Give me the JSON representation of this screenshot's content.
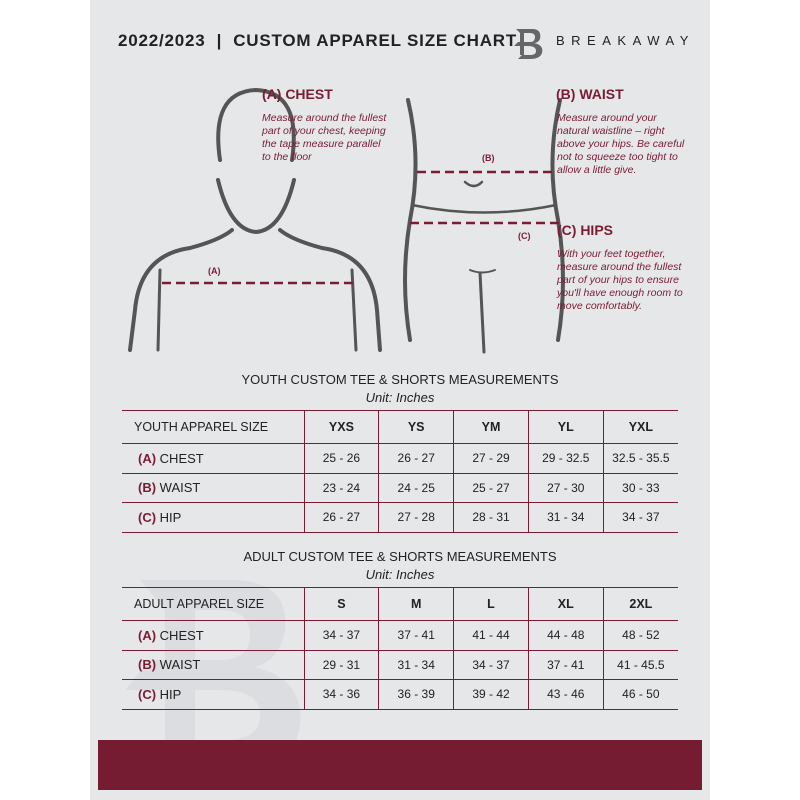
{
  "header": {
    "title": "2022/2023  |  CUSTOM APPAREL SIZE CHART",
    "brand": "BREAKAWAY",
    "logo_letter": "B"
  },
  "measures": {
    "chest": {
      "heading": "(A) CHEST",
      "desc": "Measure around the fullest part of your chest, keeping the tape measure parallel to the floor",
      "marker": "(A)"
    },
    "waist": {
      "heading": "(B) WAIST",
      "desc": "Measure around your natural waistline – right above your hips. Be careful not to squeeze too tight to allow a little give.",
      "marker": "(B)"
    },
    "hips": {
      "heading": "(C) HIPS",
      "desc": "With your feet together, measure around the fullest part of your hips to ensure you'll have enough room to move comfortably.",
      "marker": "(C)"
    }
  },
  "accent": "#7a1c34",
  "youth": {
    "title": "YOUTH CUSTOM TEE & SHORTS MEASUREMENTS",
    "unit": "Unit: Inches",
    "header": [
      "YOUTH APPAREL SIZE",
      "YXS",
      "YS",
      "YM",
      "YL",
      "YXL"
    ],
    "rows": [
      {
        "letter": "(A)",
        "label": "CHEST",
        "values": [
          "25 - 26",
          "26 - 27",
          "27 - 29",
          "29 - 32.5",
          "32.5 - 35.5"
        ]
      },
      {
        "letter": "(B)",
        "label": "WAIST",
        "values": [
          "23 - 24",
          "24 - 25",
          "25 - 27",
          "27 - 30",
          "30 - 33"
        ]
      },
      {
        "letter": "(C)",
        "label": "HIP",
        "values": [
          "26 - 27",
          "27 - 28",
          "28 - 31",
          "31 - 34",
          "34 - 37"
        ]
      }
    ]
  },
  "adult": {
    "title": "ADULT CUSTOM TEE & SHORTS MEASUREMENTS",
    "unit": "Unit: Inches",
    "header": [
      "ADULT APPAREL SIZE",
      "S",
      "M",
      "L",
      "XL",
      "2XL"
    ],
    "rows": [
      {
        "letter": "(A)",
        "label": "CHEST",
        "values": [
          "34 - 37",
          "37 - 41",
          "41 - 44",
          "44 - 48",
          "48 - 52"
        ]
      },
      {
        "letter": "(B)",
        "label": "WAIST",
        "values": [
          "29 - 31",
          "31 - 34",
          "34 - 37",
          "37 - 41",
          "41 - 45.5"
        ]
      },
      {
        "letter": "(C)",
        "label": "HIP",
        "values": [
          "34 - 36",
          "36 - 39",
          "39 - 42",
          "43 - 46",
          "46 - 50"
        ]
      }
    ]
  }
}
